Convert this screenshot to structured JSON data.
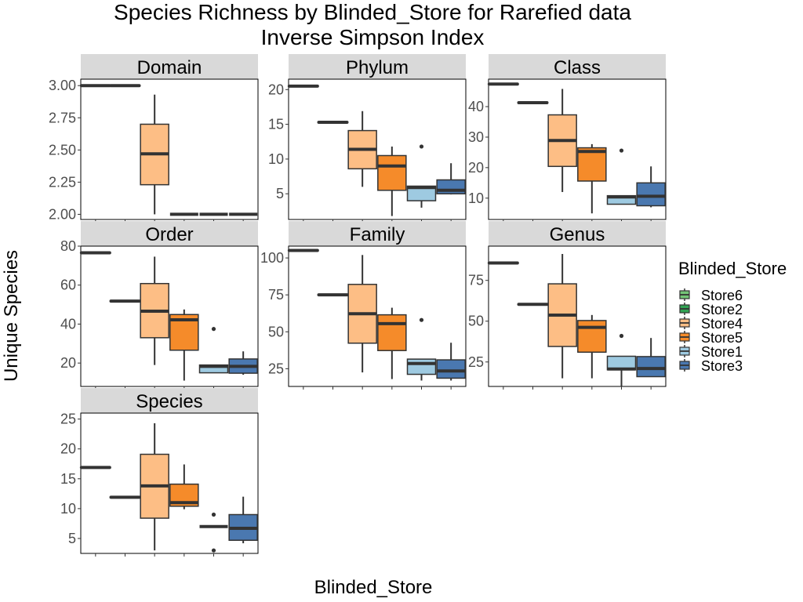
{
  "title_line1": "Species Richness by Blinded_Store for Rarefied data",
  "title_line2": "Inverse Simpson Index",
  "xlabel": "Blinded_Store",
  "ylabel": "Unique Species",
  "legend": {
    "title": "Blinded_Store",
    "items": [
      {
        "label": "Store6",
        "color": "#74c476"
      },
      {
        "label": "Store2",
        "color": "#31a354"
      },
      {
        "label": "Store4",
        "color": "#fdbe85"
      },
      {
        "label": "Store5",
        "color": "#f58b2a"
      },
      {
        "label": "Store1",
        "color": "#9ecae1"
      },
      {
        "label": "Store3",
        "color": "#4a78b0"
      }
    ]
  },
  "chart_data": {
    "type": "boxplot",
    "x_categories": [
      "Store6",
      "Store2",
      "Store4",
      "Store5",
      "Store1",
      "Store3"
    ],
    "x_tick_labels_shown": false,
    "facets": [
      {
        "name": "Domain",
        "ylim": [
          1.96,
          3.05
        ],
        "yticks": [
          "2.00",
          "2.25",
          "2.50",
          "2.75",
          "3.00"
        ],
        "boxes": [
          {
            "store": "Store4",
            "min": 2.0,
            "q1": 2.23,
            "median": 2.47,
            "q3": 2.7,
            "max": 2.93,
            "outliers": []
          },
          {
            "store": "Store5",
            "min": 2.0,
            "q1": 2.0,
            "median": 2.0,
            "q3": 2.0,
            "max": 2.0,
            "outliers": []
          },
          {
            "store": "Store1",
            "min": 2.0,
            "q1": 2.0,
            "median": 2.0,
            "q3": 2.0,
            "max": 2.0,
            "outliers": []
          },
          {
            "store": "Store3",
            "min": 2.0,
            "q1": 2.0,
            "median": 2.0,
            "q3": 2.0,
            "max": 2.0,
            "outliers": []
          }
        ],
        "slots": [
          {
            "pos": 1,
            "fill": "Store4",
            "store": "Store6",
            "value": 3.0
          },
          {
            "pos": 2,
            "fill": "Store4",
            "store": "Store2",
            "value": 3.0
          }
        ]
      },
      {
        "name": "Phylum",
        "ylim": [
          1.3,
          21.5
        ],
        "yticks": [
          "5",
          "10",
          "15",
          "20"
        ],
        "boxes": [
          {
            "store": "Store4",
            "min": 6.0,
            "q1": 8.6,
            "median": 11.4,
            "q3": 14.1,
            "max": 16.9,
            "outliers": []
          },
          {
            "store": "Store5",
            "min": 1.8,
            "q1": 5.5,
            "median": 9.0,
            "q3": 10.5,
            "max": 11.8,
            "outliers": []
          },
          {
            "store": "Store1",
            "min": 3.0,
            "q1": 4.0,
            "median": 5.9,
            "q3": 6.1,
            "max": 6.1,
            "outliers": [
              11.8
            ]
          },
          {
            "store": "Store3",
            "min": 4.9,
            "q1": 5.0,
            "median": 5.5,
            "q3": 7.0,
            "max": 9.4,
            "outliers": []
          }
        ],
        "slots": [
          {
            "pos": 1,
            "store": "Store6",
            "value": 20.5
          },
          {
            "pos": 2,
            "store": "Store2",
            "value": 15.3
          }
        ]
      },
      {
        "name": "Class",
        "ylim": [
          3,
          49
        ],
        "yticks": [
          "10",
          "20",
          "30",
          "40"
        ],
        "boxes": [
          {
            "store": "Store4",
            "min": 12.0,
            "q1": 20.4,
            "median": 28.9,
            "q3": 37.3,
            "max": 45.8,
            "outliers": []
          },
          {
            "store": "Store5",
            "min": 5.0,
            "q1": 15.6,
            "median": 25.3,
            "q3": 26.5,
            "max": 27.7,
            "outliers": []
          },
          {
            "store": "Store1",
            "min": 8.0,
            "q1": 8.0,
            "median": 10.4,
            "q3": 10.8,
            "max": 10.8,
            "outliers": [
              25.6
            ]
          },
          {
            "store": "Store3",
            "min": 7.0,
            "q1": 7.5,
            "median": 10.6,
            "q3": 15.0,
            "max": 20.4,
            "outliers": []
          }
        ],
        "slots": [
          {
            "pos": 1,
            "store": "Store6",
            "value": 47.4
          },
          {
            "pos": 2,
            "store": "Store2",
            "value": 41.3
          }
        ]
      },
      {
        "name": "Order",
        "ylim": [
          8,
          80
        ],
        "yticks": [
          "20",
          "40",
          "60",
          "80"
        ],
        "boxes": [
          {
            "store": "Store4",
            "min": 19.0,
            "q1": 33.0,
            "median": 46.6,
            "q3": 60.8,
            "max": 74.6,
            "outliers": []
          },
          {
            "store": "Store5",
            "min": 11.0,
            "q1": 26.6,
            "median": 42.2,
            "q3": 44.9,
            "max": 47.5,
            "outliers": []
          },
          {
            "store": "Store1",
            "min": 15.0,
            "q1": 15.0,
            "median": 18.3,
            "q3": 19.0,
            "max": 19.0,
            "outliers": [
              37.5
            ]
          },
          {
            "store": "Store3",
            "min": 14.0,
            "q1": 14.8,
            "median": 18.3,
            "q3": 22.1,
            "max": 26.0,
            "outliers": []
          }
        ],
        "slots": [
          {
            "pos": 1,
            "store": "Store6",
            "value": 76.6
          },
          {
            "pos": 2,
            "store": "Store2",
            "value": 51.8
          }
        ]
      },
      {
        "name": "Family",
        "ylim": [
          13,
          108
        ],
        "yticks": [
          "25",
          "50",
          "75",
          "100"
        ],
        "boxes": [
          {
            "store": "Store4",
            "min": 22.5,
            "q1": 42.3,
            "median": 62.2,
            "q3": 82.1,
            "max": 102.0,
            "outliers": []
          },
          {
            "store": "Store5",
            "min": 18.0,
            "q1": 37.3,
            "median": 55.5,
            "q3": 61.5,
            "max": 66.3,
            "outliers": []
          },
          {
            "store": "Store1",
            "min": 17.0,
            "q1": 21.2,
            "median": 28.5,
            "q3": 31.5,
            "max": 31.5,
            "outliers": [
              58.0
            ]
          },
          {
            "store": "Store3",
            "min": 17.0,
            "q1": 18.6,
            "median": 23.5,
            "q3": 31.0,
            "max": 42.6,
            "outliers": []
          }
        ],
        "slots": [
          {
            "pos": 1,
            "store": "Store6",
            "value": 105.1
          },
          {
            "pos": 2,
            "store": "Store2",
            "value": 75.0
          }
        ]
      },
      {
        "name": "Genus",
        "ylim": [
          10,
          96
        ],
        "yticks": [
          "25",
          "50",
          "75"
        ],
        "boxes": [
          {
            "store": "Store4",
            "min": 15.0,
            "q1": 34.5,
            "median": 53.7,
            "q3": 72.9,
            "max": 91.2,
            "outliers": []
          },
          {
            "store": "Store5",
            "min": 15.0,
            "q1": 31.0,
            "median": 46.2,
            "q3": 50.4,
            "max": 53.8,
            "outliers": []
          },
          {
            "store": "Store1",
            "min": 10.0,
            "q1": 20.2,
            "median": 20.7,
            "q3": 28.5,
            "max": 28.5,
            "outliers": [
              41.0
            ]
          },
          {
            "store": "Store3",
            "min": 16.0,
            "q1": 16.0,
            "median": 21.0,
            "q3": 28.3,
            "max": 39.7,
            "outliers": []
          }
        ],
        "slots": [
          {
            "pos": 1,
            "store": "Store6",
            "value": 85.7
          },
          {
            "pos": 2,
            "store": "Store2",
            "value": 60.3
          }
        ]
      },
      {
        "name": "Species",
        "ylim": [
          2.5,
          26
        ],
        "yticks": [
          "5",
          "10",
          "15",
          "20",
          "25"
        ],
        "boxes": [
          {
            "store": "Store4",
            "min": 3.0,
            "q1": 8.4,
            "median": 13.8,
            "q3": 19.1,
            "max": 24.3,
            "outliers": []
          },
          {
            "store": "Store5",
            "min": 9.9,
            "q1": 10.4,
            "median": 11.0,
            "q3": 14.1,
            "max": 17.4,
            "outliers": []
          },
          {
            "store": "Store1",
            "min": 7.0,
            "q1": 7.0,
            "median": 7.0,
            "q3": 7.0,
            "max": 7.0,
            "outliers": [
              9.0,
              3.0
            ]
          },
          {
            "store": "Store3",
            "min": 4.2,
            "q1": 4.7,
            "median": 6.7,
            "q3": 9.0,
            "max": 12.0,
            "outliers": []
          }
        ],
        "slots": [
          {
            "pos": 1,
            "store": "Store6",
            "value": 16.9
          },
          {
            "pos": 2,
            "store": "Store2",
            "value": 11.9
          }
        ]
      }
    ]
  }
}
